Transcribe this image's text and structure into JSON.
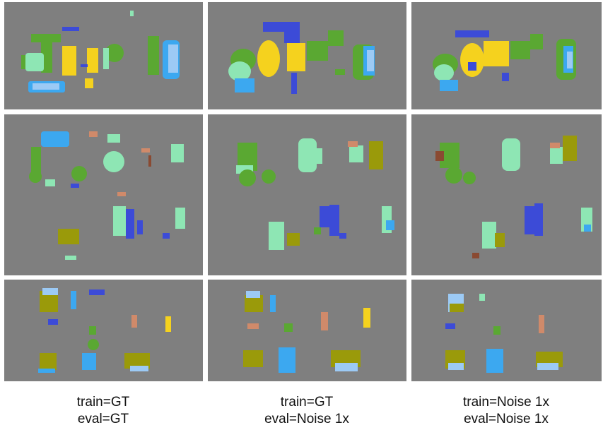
{
  "colors": {
    "background": "#7f7f7f",
    "light_green": "#8ee6b4",
    "green": "#5aa832",
    "yellow": "#f5d21e",
    "blue": "#3c4bd7",
    "sky": "#3ca8f0",
    "light_blue": "#9ccaf5",
    "olive": "#9a9a0a",
    "salmon": "#d08a6a",
    "brown": "#8a4a32"
  },
  "captions": [
    {
      "train": "train=GT",
      "eval": "eval=GT"
    },
    {
      "train": "train=GT",
      "eval": "eval=Noise 1x"
    },
    {
      "train": "train=Noise 1x",
      "eval": "eval=Noise 1x"
    }
  ]
}
